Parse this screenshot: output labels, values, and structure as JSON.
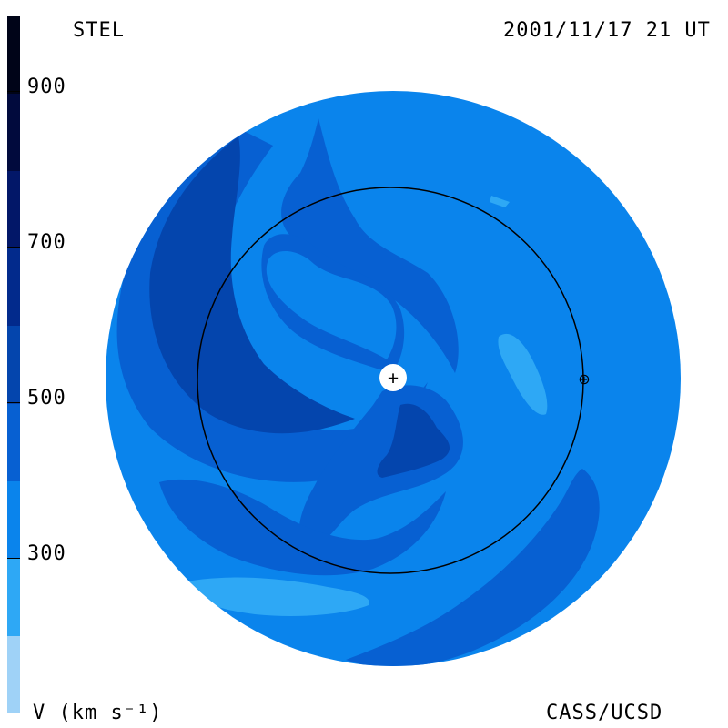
{
  "header": {
    "left_title": "STEL",
    "right_title": "2001/11/17 21 UT"
  },
  "footer": {
    "left_label": "V (km s⁻¹)",
    "right_label": "CASS/UCSD"
  },
  "colorbar": {
    "levels": [
      {
        "color": "#9fd2f7"
      },
      {
        "color": "#2ea8f5"
      },
      {
        "color": "#0a84ec"
      },
      {
        "color": "#0760d2"
      },
      {
        "color": "#0445ad"
      },
      {
        "color": "#022a8c"
      },
      {
        "color": "#021768"
      },
      {
        "color": "#010a3d"
      },
      {
        "color": "#000418"
      }
    ],
    "ticks": [
      {
        "label": "900",
        "value": 900
      },
      {
        "label": "700",
        "value": 700
      },
      {
        "label": "500",
        "value": 500
      },
      {
        "label": "300",
        "value": 300
      }
    ]
  },
  "markers": {
    "sun_glyph": "+",
    "earth_glyph": "⊕"
  }
}
